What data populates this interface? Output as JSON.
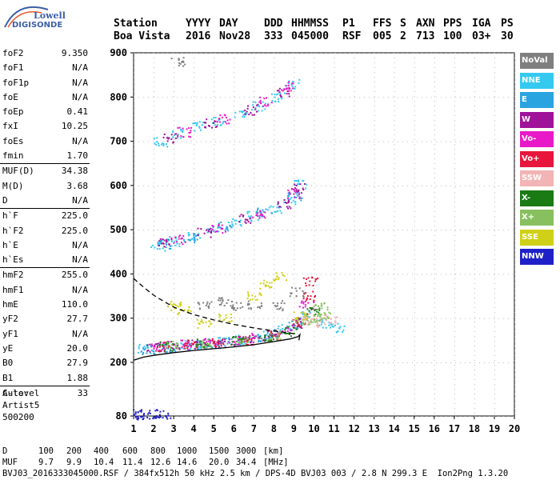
{
  "logo": {
    "line1": "Lowell",
    "line2": "DIGISONDE"
  },
  "header": {
    "row1": [
      "Station",
      "YYYY",
      "DAY",
      "DDD",
      "HHMMSS",
      "P1",
      "FFS",
      "S",
      "AXN",
      "PPS",
      "IGA",
      "PS"
    ],
    "row2": [
      "Boa Vista",
      "2016",
      "Nov28",
      "333",
      "045000",
      "RSF",
      "005",
      "2",
      "713",
      "100",
      "03+",
      "30"
    ]
  },
  "params": {
    "g1": [
      [
        "foF2",
        "9.350"
      ],
      [
        "foF1",
        "N/A"
      ],
      [
        "foF1p",
        "N/A"
      ],
      [
        "foE",
        "N/A"
      ],
      [
        "foEp",
        "0.41"
      ],
      [
        "fxI",
        "10.25"
      ],
      [
        "foEs",
        "N/A"
      ],
      [
        "fmin",
        "1.70"
      ]
    ],
    "g2": [
      [
        "MUF(D)",
        "34.38"
      ],
      [
        "M(D)",
        "3.68"
      ],
      [
        "D",
        "N/A"
      ]
    ],
    "g3": [
      [
        "h`F",
        "225.0"
      ],
      [
        "h`F2",
        "225.0"
      ],
      [
        "h`E",
        "N/A"
      ],
      [
        "h`Es",
        "N/A"
      ]
    ],
    "g4": [
      [
        "hmF2",
        "255.0"
      ],
      [
        "hmF1",
        "N/A"
      ],
      [
        "hmE",
        "110.0"
      ],
      [
        "yF2",
        "27.7"
      ],
      [
        "yF1",
        "N/A"
      ],
      [
        "yE",
        "20.0"
      ],
      [
        "B0",
        "27.9"
      ],
      [
        "B1",
        "1.88"
      ]
    ],
    "g5": [
      [
        "C-level",
        "33"
      ]
    ]
  },
  "auto": {
    "l1": "Auto:",
    "l2": "Artist5",
    "l3": "500200"
  },
  "legend": [
    {
      "label": "NoVal",
      "color": "#7f7f7f"
    },
    {
      "label": "NNE",
      "color": "#35c9f0"
    },
    {
      "label": "E",
      "color": "#2aa4e0"
    },
    {
      "label": "W",
      "color": "#a0129a"
    },
    {
      "label": "Vo-",
      "color": "#e81ac8"
    },
    {
      "label": "Vo+",
      "color": "#e8163c"
    },
    {
      "label": "SSW",
      "color": "#f2b4b4"
    },
    {
      "label": "X-",
      "color": "#1a7a14"
    },
    {
      "label": "X+",
      "color": "#88c060"
    },
    {
      "label": "SSE",
      "color": "#d0d018"
    },
    {
      "label": "NNW",
      "color": "#2020c8"
    }
  ],
  "chart_data": {
    "type": "scatter",
    "title": "",
    "xlabel": "",
    "ylabel": "",
    "xlim": [
      1,
      20
    ],
    "ylim": [
      80,
      900
    ],
    "x_ticks": [
      1,
      2,
      3,
      4,
      5,
      6,
      7,
      8,
      9,
      10,
      11,
      12,
      13,
      14,
      15,
      16,
      17,
      18,
      19,
      20
    ],
    "y_ticks": [
      80,
      200,
      300,
      400,
      500,
      600,
      700,
      800,
      900
    ],
    "series": [
      {
        "name": "NNE",
        "color": "#35c9f0",
        "points": [
          [
            1.5,
            232
          ],
          [
            2.5,
            236
          ],
          [
            3.5,
            240
          ],
          [
            4.5,
            243
          ],
          [
            5.5,
            247
          ],
          [
            6.5,
            253
          ],
          [
            7.5,
            262
          ],
          [
            8.5,
            276
          ],
          [
            9.5,
            305
          ],
          [
            10.5,
            290
          ],
          [
            11.2,
            280
          ],
          [
            2.2,
            462
          ],
          [
            3,
            475
          ],
          [
            4,
            487
          ],
          [
            5,
            502
          ],
          [
            6,
            517
          ],
          [
            7,
            532
          ],
          [
            8,
            548
          ],
          [
            8.8,
            570
          ],
          [
            9.3,
            605
          ],
          [
            2.3,
            700
          ],
          [
            3.2,
            718
          ],
          [
            4.2,
            735
          ],
          [
            5.2,
            748
          ],
          [
            6.3,
            762
          ],
          [
            7.2,
            780
          ],
          [
            8.2,
            802
          ],
          [
            8.9,
            830
          ]
        ]
      },
      {
        "name": "E",
        "color": "#2aa4e0",
        "points": [
          [
            1.7,
            229
          ],
          [
            2.8,
            234
          ],
          [
            4,
            240
          ],
          [
            5,
            244
          ],
          [
            6,
            248
          ],
          [
            7,
            255
          ],
          [
            8,
            265
          ],
          [
            9,
            285
          ],
          [
            2.6,
            468
          ],
          [
            3.8,
            482
          ],
          [
            5.5,
            510
          ],
          [
            7.5,
            540
          ],
          [
            9,
            578
          ]
        ]
      },
      {
        "name": "W",
        "color": "#a0129a",
        "points": [
          [
            2,
            235
          ],
          [
            3,
            238
          ],
          [
            4.2,
            242
          ],
          [
            5.3,
            246
          ],
          [
            6.5,
            251
          ],
          [
            7.8,
            260
          ],
          [
            9.2,
            290
          ],
          [
            2.5,
            470
          ],
          [
            4.5,
            495
          ],
          [
            6.5,
            525
          ],
          [
            8.5,
            560
          ],
          [
            9.2,
            595
          ],
          [
            2.8,
            708
          ],
          [
            4.8,
            742
          ],
          [
            6.8,
            772
          ],
          [
            8.5,
            812
          ]
        ]
      },
      {
        "name": "Vo-",
        "color": "#e81ac8",
        "points": [
          [
            2.2,
            236
          ],
          [
            3.6,
            241
          ],
          [
            4.8,
            245
          ],
          [
            6,
            249
          ],
          [
            7.2,
            256
          ],
          [
            8.5,
            270
          ],
          [
            9.6,
            330
          ],
          [
            3.2,
            478
          ],
          [
            5.2,
            505
          ],
          [
            7.2,
            535
          ],
          [
            9,
            583
          ],
          [
            3.5,
            722
          ],
          [
            5.5,
            752
          ],
          [
            7.5,
            790
          ],
          [
            8.7,
            826
          ]
        ]
      },
      {
        "name": "Vo+",
        "color": "#e8163c",
        "points": [
          [
            2.4,
            237
          ],
          [
            3.8,
            242
          ],
          [
            5.2,
            247
          ],
          [
            6.6,
            252
          ],
          [
            8,
            263
          ],
          [
            9.2,
            293
          ],
          [
            9.7,
            352
          ],
          [
            9.8,
            385
          ]
        ]
      },
      {
        "name": "SSW",
        "color": "#f2b4b4",
        "points": [
          [
            9.5,
            305
          ],
          [
            10,
            300
          ],
          [
            10.4,
            292
          ],
          [
            10.8,
            298
          ]
        ]
      },
      {
        "name": "X-",
        "color": "#1a7a14",
        "points": [
          [
            2.6,
            238
          ],
          [
            4.4,
            243
          ],
          [
            6.2,
            250
          ],
          [
            7.6,
            258
          ],
          [
            8.8,
            272
          ],
          [
            9.9,
            315
          ]
        ]
      },
      {
        "name": "X+",
        "color": "#88c060",
        "points": [
          [
            2.9,
            240
          ],
          [
            4.6,
            244
          ],
          [
            6.4,
            251
          ],
          [
            8,
            262
          ],
          [
            9.4,
            298
          ],
          [
            10.1,
            300
          ],
          [
            10.3,
            330
          ],
          [
            10.5,
            305
          ]
        ]
      },
      {
        "name": "SSE",
        "color": "#d0d018",
        "points": [
          [
            3,
            330
          ],
          [
            3.5,
            320
          ],
          [
            4.5,
            290
          ],
          [
            5.5,
            300
          ],
          [
            7,
            350
          ],
          [
            7.5,
            378
          ],
          [
            8.3,
            395
          ],
          [
            9.3,
            305
          ]
        ]
      },
      {
        "name": "NoVal",
        "color": "#7f7f7f",
        "points": [
          [
            3.2,
            882
          ],
          [
            4.5,
            330
          ],
          [
            5.5,
            340
          ],
          [
            6.2,
            330
          ],
          [
            7,
            330
          ],
          [
            8.2,
            330
          ],
          [
            9.1,
            360
          ]
        ]
      },
      {
        "name": "NNW",
        "color": "#2020c8",
        "points": [
          [
            1.2,
            86
          ],
          [
            1.4,
            84
          ],
          [
            2.0,
            86
          ],
          [
            2.5,
            84
          ]
        ]
      }
    ],
    "lines": [
      {
        "kind": "profile",
        "color": "#000",
        "dash": false,
        "x": [
          1,
          1.5,
          2,
          3,
          4,
          5,
          6,
          7,
          8,
          8.8,
          9.2,
          9.3,
          9.25
        ],
        "y": [
          205,
          212,
          216,
          222,
          227,
          231,
          235,
          240,
          247,
          253,
          258,
          263,
          250
        ]
      },
      {
        "kind": "profile-dashed",
        "color": "#000",
        "dash": true,
        "x": [
          1,
          1.5,
          2,
          2.5,
          3,
          4,
          5,
          6,
          7,
          8,
          9
        ],
        "y": [
          390,
          370,
          352,
          338,
          325,
          308,
          296,
          286,
          278,
          271,
          265
        ]
      }
    ]
  },
  "footer": {
    "l1": [
      "D",
      "100",
      "200",
      "400",
      "600",
      "800",
      "1000",
      "1500",
      "3000",
      "[km]"
    ],
    "l2": [
      "MUF",
      "9.7",
      "9.9",
      "10.4",
      "11.4",
      "12.6",
      "14.6",
      "20.0",
      "34.4",
      "[MHz]"
    ],
    "l3": "BVJ03_2016333045000.RSF / 384fx512h 50 kHz 2.5 km / DPS-4D BVJ03 003 / 2.8 N 299.3 E  Ion2Png 1.3.20"
  }
}
